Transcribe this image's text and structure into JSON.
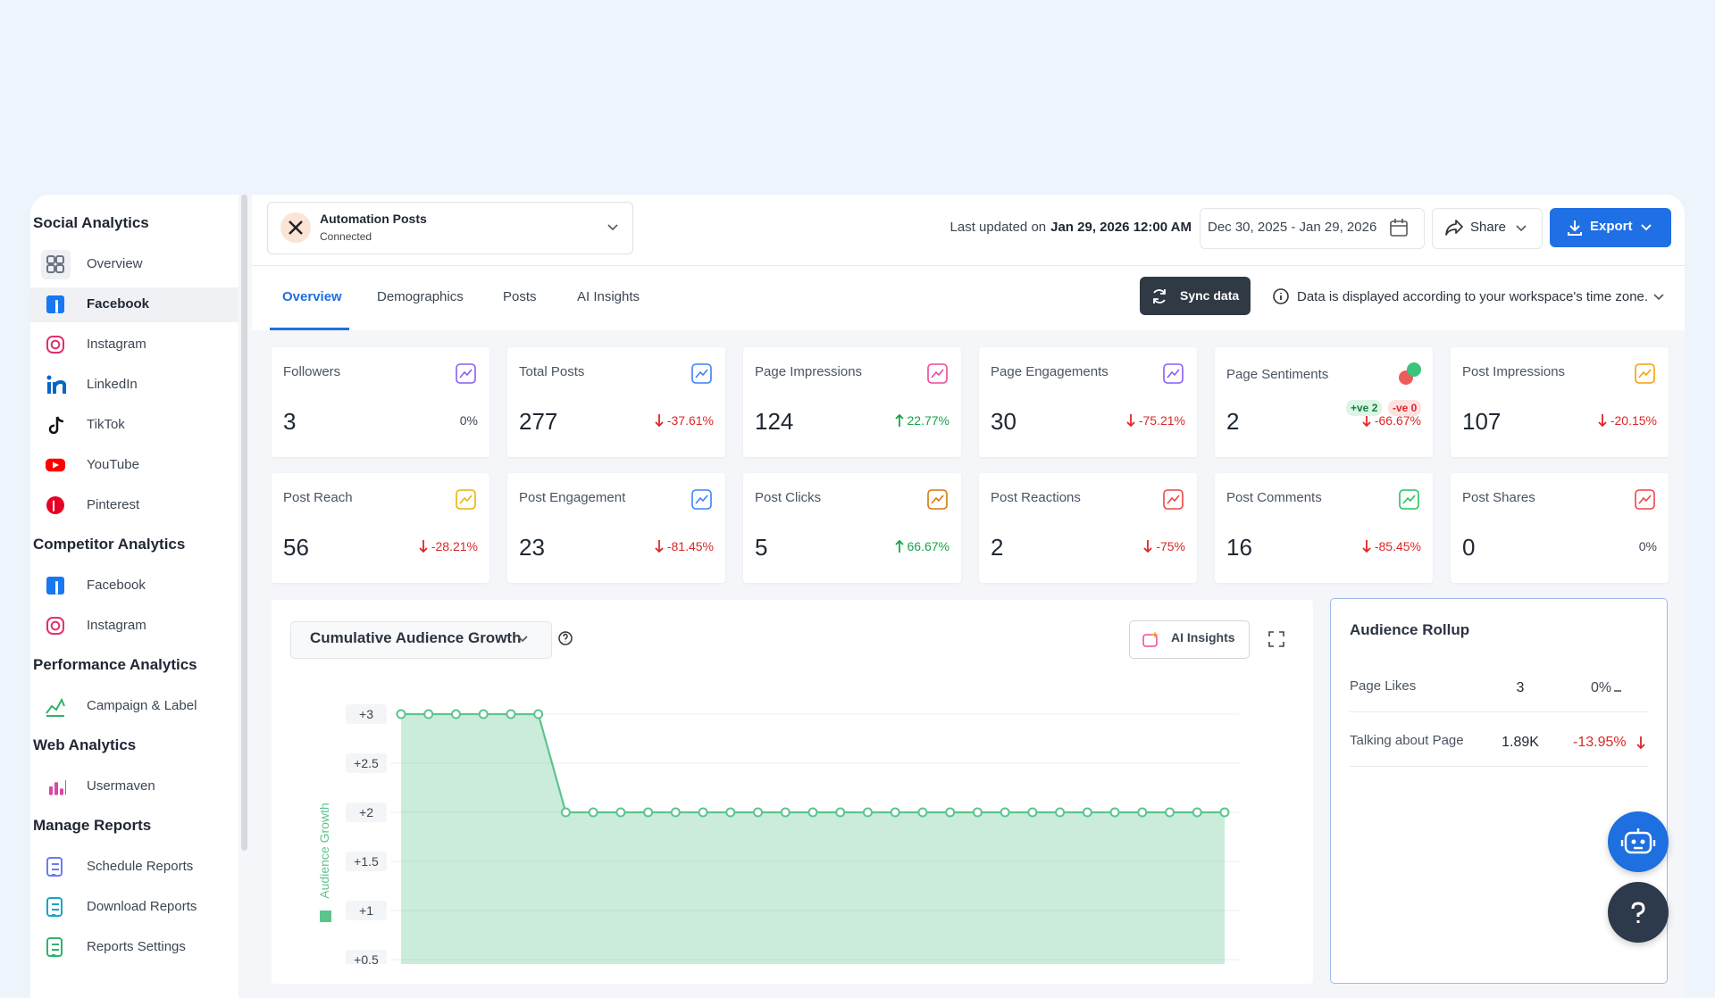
{
  "sidebar": {
    "sections": [
      {
        "title": "Social Analytics",
        "items": [
          "Overview",
          "Facebook",
          "Instagram",
          "LinkedIn",
          "TikTok",
          "YouTube",
          "Pinterest"
        ]
      },
      {
        "title": "Competitor Analytics",
        "items": [
          "Facebook",
          "Instagram"
        ]
      },
      {
        "title": "Performance Analytics",
        "items": [
          "Campaign & Label"
        ]
      },
      {
        "title": "Web Analytics",
        "items": [
          "Usermaven"
        ]
      },
      {
        "title": "Manage Reports",
        "items": [
          "Schedule Reports",
          "Download Reports",
          "Reports Settings"
        ]
      }
    ]
  },
  "header": {
    "account_name": "Automation Posts",
    "account_status": "Connected",
    "last_updated_prefix": "Last updated on",
    "last_updated": "Jan 29, 2026 12:00 AM",
    "date_range": "Dec 30, 2025 - Jan 29, 2026",
    "share": "Share",
    "export": "Export"
  },
  "tabs": [
    "Overview",
    "Demographics",
    "Posts",
    "AI Insights"
  ],
  "sync": "Sync data",
  "timezone_note": "Data is displayed according to your workspace's time zone.",
  "metrics": [
    {
      "label": "Followers",
      "value": "3",
      "change": "0%",
      "trend": "flat"
    },
    {
      "label": "Total Posts",
      "value": "277",
      "change": "-37.61%",
      "trend": "down"
    },
    {
      "label": "Page Impressions",
      "value": "124",
      "change": "22.77%",
      "trend": "up"
    },
    {
      "label": "Page Engagements",
      "value": "30",
      "change": "-75.21%",
      "trend": "down"
    },
    {
      "label": "Page Sentiments",
      "value": "2",
      "change": "-66.67%",
      "trend": "down",
      "positive": "+ve 2",
      "negative": "-ve 0"
    },
    {
      "label": "Post Impressions",
      "value": "107",
      "change": "-20.15%",
      "trend": "down"
    },
    {
      "label": "Post Reach",
      "value": "56",
      "change": "-28.21%",
      "trend": "down"
    },
    {
      "label": "Post Engagement",
      "value": "23",
      "change": "-81.45%",
      "trend": "down"
    },
    {
      "label": "Post Clicks",
      "value": "5",
      "change": "66.67%",
      "trend": "up"
    },
    {
      "label": "Post Reactions",
      "value": "2",
      "change": "-75%",
      "trend": "down"
    },
    {
      "label": "Post Comments",
      "value": "16",
      "change": "-85.45%",
      "trend": "down"
    },
    {
      "label": "Post Shares",
      "value": "0",
      "change": "0%",
      "trend": "flat"
    }
  ],
  "chart_data": {
    "type": "area",
    "title": "Cumulative Audience Growth",
    "ai_button": "AI Insights",
    "series": [
      {
        "name": "Audience Growth",
        "color": "#5cc48c",
        "values": [
          3,
          3,
          3,
          3,
          3,
          3,
          2,
          2,
          2,
          2,
          2,
          2,
          2,
          2,
          2,
          2,
          2,
          2,
          2,
          2,
          2,
          2,
          2,
          2,
          2,
          2,
          2,
          2,
          2,
          2,
          2
        ]
      }
    ],
    "ylim": [
      0.5,
      3
    ],
    "yticks": [
      {
        "value": 3,
        "label": "+3"
      },
      {
        "value": 2.5,
        "label": "+2.5"
      },
      {
        "value": 2,
        "label": "+2"
      },
      {
        "value": 1.5,
        "label": "+1.5"
      },
      {
        "value": 1,
        "label": "+1"
      },
      {
        "value": 0.5,
        "label": "+0.5"
      }
    ],
    "grid": true
  },
  "rollup": {
    "title": "Audience Rollup",
    "rows": [
      {
        "label": "Page Likes",
        "value": "3",
        "change": "0%",
        "trend": "flat"
      },
      {
        "label": "Talking about Page",
        "value": "1.89K",
        "change": "-13.95%",
        "trend": "down"
      }
    ]
  }
}
